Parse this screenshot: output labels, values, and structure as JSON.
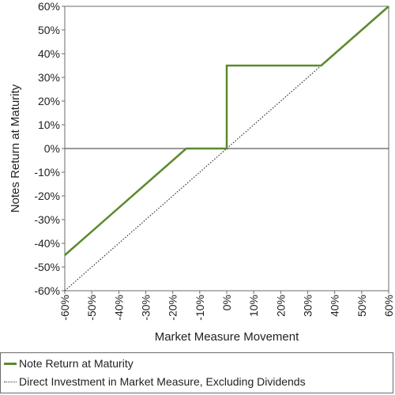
{
  "chart_data": {
    "type": "line",
    "title": "",
    "xlabel": "Market Measure Movement",
    "ylabel": "Notes Return at Maturity",
    "xlim": [
      -60,
      60
    ],
    "ylim": [
      -60,
      60
    ],
    "x_ticks": [
      "-60%",
      "-50%",
      "-40%",
      "-30%",
      "-20%",
      "-10%",
      "0%",
      "10%",
      "20%",
      "30%",
      "40%",
      "50%",
      "60%"
    ],
    "y_ticks": [
      "60%",
      "50%",
      "40%",
      "30%",
      "20%",
      "10%",
      "0%",
      "-10%",
      "-20%",
      "-30%",
      "-40%",
      "-50%",
      "-60%"
    ],
    "grid": false,
    "legend_position": "bottom",
    "series": [
      {
        "name": "Note Return at Maturity",
        "color": "#5a8a2e",
        "style": "solid",
        "x": [
          -60,
          -15,
          0,
          0,
          35,
          60
        ],
        "y": [
          -45,
          0,
          0,
          35,
          35,
          60
        ]
      },
      {
        "name": "Direct Investment in Market Measure, Excluding Dividends",
        "color": "#333333",
        "style": "dotted",
        "x": [
          -60,
          60
        ],
        "y": [
          -60,
          60
        ]
      }
    ]
  }
}
